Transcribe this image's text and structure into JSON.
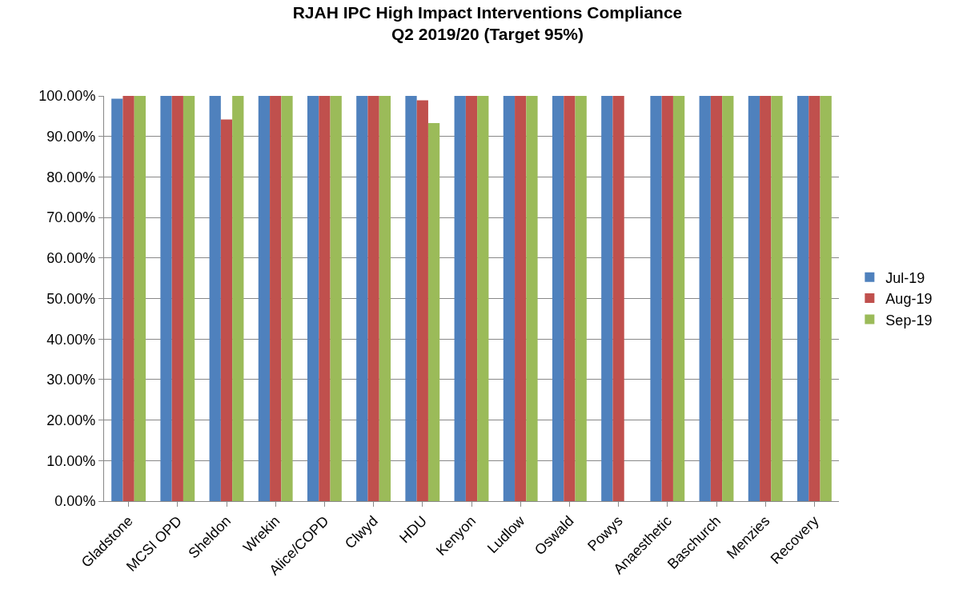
{
  "chart_data": {
    "type": "bar",
    "title": "RJAH IPC High Impact Interventions Compliance\nQ2 2019/20 (Target 95%)",
    "categories": [
      "Gladstone",
      "MCSI OPD",
      "Sheldon",
      "Wrekin",
      "Alice/COPD",
      "Clwyd",
      "HDU",
      "Kenyon",
      "Ludlow",
      "Oswald",
      "Powys",
      "Anaesthetic",
      "Baschurch",
      "Menzies",
      "Recovery"
    ],
    "series": [
      {
        "name": "Jul-19",
        "color": "#4f81bd",
        "values": [
          99.3,
          100,
          100,
          100,
          100,
          100,
          100,
          100,
          100,
          100,
          100,
          100,
          100,
          100,
          100
        ]
      },
      {
        "name": "Aug-19",
        "color": "#c0504d",
        "values": [
          100,
          100,
          94.2,
          100,
          100,
          100,
          98.9,
          100,
          100,
          100,
          100,
          100,
          100,
          100,
          100
        ]
      },
      {
        "name": "Sep-19",
        "color": "#9bbb59",
        "values": [
          100,
          100,
          100,
          100,
          100,
          100,
          93.3,
          100,
          100,
          100,
          null,
          100,
          100,
          100,
          100
        ]
      }
    ],
    "ylim": [
      0,
      100
    ],
    "yticks": [
      {
        "value": 0,
        "label": "0.00%"
      },
      {
        "value": 10,
        "label": "10.00%"
      },
      {
        "value": 20,
        "label": "20.00%"
      },
      {
        "value": 30,
        "label": "30.00%"
      },
      {
        "value": 40,
        "label": "40.00%"
      },
      {
        "value": 50,
        "label": "50.00%"
      },
      {
        "value": 60,
        "label": "60.00%"
      },
      {
        "value": 70,
        "label": "70.00%"
      },
      {
        "value": 80,
        "label": "80.00%"
      },
      {
        "value": 90,
        "label": "90.00%"
      },
      {
        "value": 100,
        "label": "100.00%"
      }
    ],
    "grid": "y",
    "legend": "right"
  }
}
